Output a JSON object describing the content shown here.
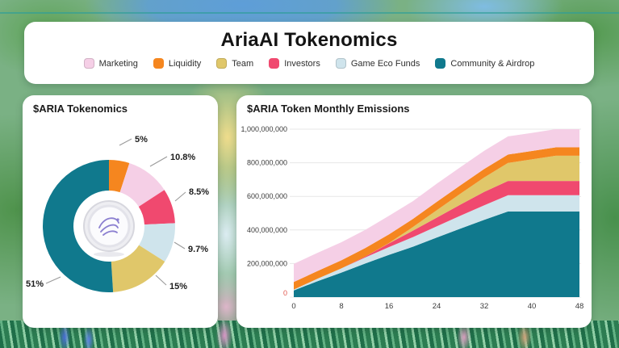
{
  "page": {
    "title": "AriaAI Tokenomics"
  },
  "legend": {
    "items": [
      {
        "label": "Marketing",
        "color": "#f5cfe6"
      },
      {
        "label": "Liquidity",
        "color": "#f5861f"
      },
      {
        "label": "Team",
        "color": "#e0c76a"
      },
      {
        "label": "Investors",
        "color": "#f0496f"
      },
      {
        "label": "Game Eco Funds",
        "color": "#cfe4ec"
      },
      {
        "label": "Community & Airdrop",
        "color": "#10798d"
      }
    ]
  },
  "cards": {
    "donut": {
      "title": "$ARIA Tokenomics"
    },
    "emissions": {
      "title": "$ARIA Token Monthly Emissions"
    }
  },
  "chart_data": [
    {
      "type": "pie",
      "title": "$ARIA Tokenomics",
      "donut": true,
      "start_angle_deg": 0,
      "direction": "clockwise",
      "slices": [
        {
          "name": "Liquidity",
          "value": 5,
          "label": "5%",
          "color": "#f5861f"
        },
        {
          "name": "Marketing",
          "value": 10.8,
          "label": "10.8%",
          "color": "#f5cfe6"
        },
        {
          "name": "Investors",
          "value": 8.5,
          "label": "8.5%",
          "color": "#f0496f"
        },
        {
          "name": "Game Eco Funds",
          "value": 9.7,
          "label": "9.7%",
          "color": "#cfe4ec"
        },
        {
          "name": "Team",
          "value": 15,
          "label": "15%",
          "color": "#e0c76a"
        },
        {
          "name": "Community & Airdrop",
          "value": 51,
          "label": "51%",
          "color": "#10798d"
        }
      ]
    },
    {
      "type": "area",
      "title": "$ARIA Token Monthly Emissions",
      "stacked": true,
      "x": [
        0,
        4,
        8,
        12,
        16,
        20,
        24,
        28,
        32,
        36,
        40,
        44,
        48
      ],
      "x_ticks": [
        {
          "value": 0,
          "label": "0"
        },
        {
          "value": 8,
          "label": "8"
        },
        {
          "value": 16,
          "label": "16"
        },
        {
          "value": 24,
          "label": "24"
        },
        {
          "value": 32,
          "label": "32"
        },
        {
          "value": 40,
          "label": "40"
        },
        {
          "value": 48,
          "label": "48"
        }
      ],
      "y_ticks": [
        {
          "value": 200000000,
          "label": "200,000,000"
        },
        {
          "value": 400000000,
          "label": "400,000,000"
        },
        {
          "value": 600000000,
          "label": "600,000,000"
        },
        {
          "value": 800000000,
          "label": "800,000,000"
        },
        {
          "value": 1000000000,
          "label": "1,000,000,000"
        }
      ],
      "y_zero": {
        "label": "0"
      },
      "ylim": [
        0,
        1000000000
      ],
      "grid": "horizontal",
      "series": [
        {
          "name": "Community & Airdrop",
          "color": "#10798d",
          "values": [
            40000000,
            95000000,
            146000000,
            200000000,
            252000000,
            300000000,
            355000000,
            408000000,
            460000000,
            510000000,
            510000000,
            510000000,
            510000000
          ]
        },
        {
          "name": "Game Eco Funds",
          "color": "#cfe4ec",
          "values": [
            5000000,
            15000000,
            25000000,
            36000000,
            46000000,
            57000000,
            66000000,
            77000000,
            87000000,
            97000000,
            97000000,
            97000000,
            97000000
          ]
        },
        {
          "name": "Investors",
          "color": "#f0496f",
          "values": [
            0,
            0,
            0,
            6000000,
            22000000,
            38000000,
            52000000,
            66000000,
            80000000,
            85000000,
            85000000,
            85000000,
            85000000
          ]
        },
        {
          "name": "Team",
          "color": "#e0c76a",
          "values": [
            0,
            0,
            0,
            0,
            2000000,
            22000000,
            44000000,
            65000000,
            86000000,
            107000000,
            128000000,
            150000000,
            150000000
          ]
        },
        {
          "name": "Liquidity",
          "color": "#f5861f",
          "values": [
            45000000,
            46000000,
            48000000,
            50000000,
            52000000,
            48000000,
            50000000,
            50000000,
            50000000,
            50000000,
            50000000,
            50000000,
            50000000
          ]
        },
        {
          "name": "Marketing",
          "color": "#f5cfe6",
          "values": [
            108000000,
            108000000,
            108000000,
            108000000,
            110000000,
            106000000,
            108000000,
            108000000,
            108000000,
            108000000,
            108000000,
            108000000,
            108000000
          ]
        }
      ]
    }
  ]
}
